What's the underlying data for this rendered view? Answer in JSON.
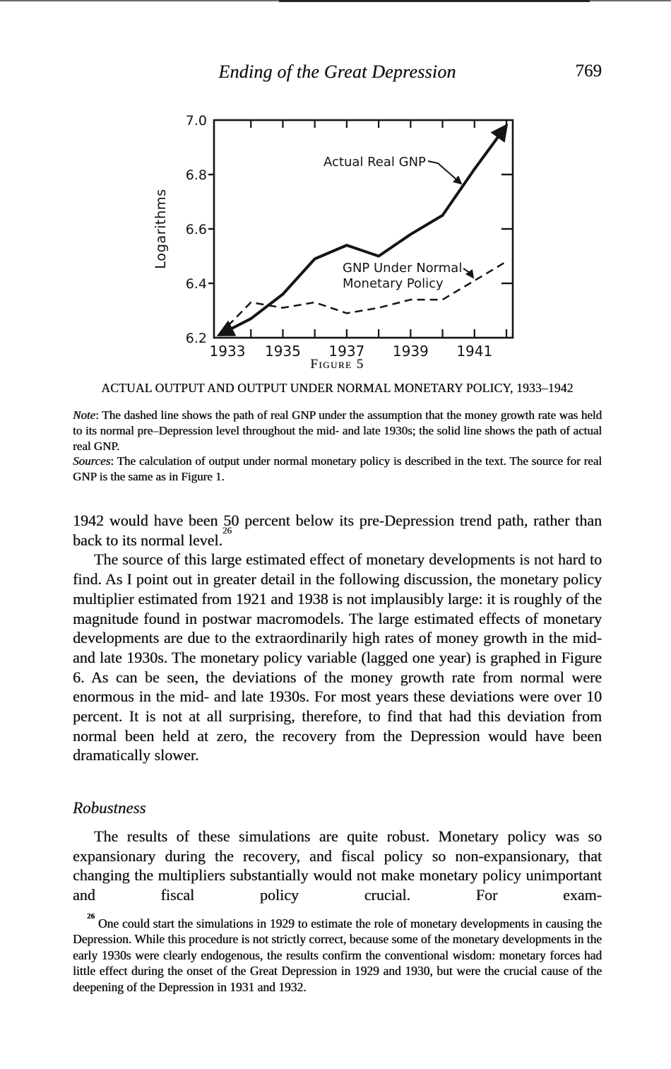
{
  "page_header": {
    "title": "Ending of the Great Depression",
    "page_number": "769"
  },
  "figure": {
    "label": "Figure 5",
    "caption": "ACTUAL OUTPUT AND OUTPUT UNDER NORMAL MONETARY POLICY, 1933–1942",
    "note_label": "Note",
    "note_body": ": The dashed line shows the path of real GNP under the assumption that the money growth rate was held to its normal pre–Depression level throughout the mid- and late 1930s; the solid line shows the path of actual real GNP.",
    "sources_label": "Sources",
    "sources_body": ": The calculation of output under normal monetary policy is described in the text. The source for real GNP is the same as in Figure 1."
  },
  "body": {
    "para1": "1942 would have been 50 percent below its pre-Depression trend path, rather than back to its normal level.",
    "para1_ref": "26",
    "para2": "The source of this large estimated effect of monetary developments is not hard to find. As I point out in greater detail in the following discussion, the monetary policy multiplier estimated from 1921 and 1938 is not implausibly large: it is roughly of the magnitude found in postwar macromodels. The large estimated effects of monetary developments are due to the extraordinarily high rates of money growth in the mid- and late 1930s. The monetary policy variable (lagged one year) is graphed in Figure 6. As can be seen, the deviations of the money growth rate from normal were enormous in the mid- and late 1930s. For most years these deviations were over 10 percent. It is not at all surprising, therefore, to find that had this deviation from normal been held at zero, the recovery from the Depression would have been dramatically slower.",
    "section_heading": "Robustness",
    "para3": "The results of these simulations are quite robust. Monetary policy was so expansionary during the recovery, and fiscal policy so non-expansionary, that changing the multipliers substantially would not make monetary policy unimportant and fiscal policy crucial. For exam-"
  },
  "footnote": {
    "ref": "26",
    "text": " One could start the simulations in 1929 to estimate the role of monetary developments in causing the Depression. While this procedure is not strictly correct, because some of the monetary developments in the early 1930s were clearly endogenous, the results confirm the conventional wisdom: monetary forces had little effect during the onset of the Great Depression in 1929 and 1930, but were the crucial cause of the deepening of the Depression in 1931 and 1932."
  },
  "chart_data": {
    "type": "line",
    "title": "Figure 5",
    "xlabel": "",
    "ylabel": "Logarithms",
    "x": [
      1933,
      1934,
      1935,
      1936,
      1937,
      1938,
      1939,
      1940,
      1941,
      1942
    ],
    "series": [
      {
        "name": "Actual Real GNP",
        "line_style": "solid",
        "values": [
          6.21,
          6.27,
          6.36,
          6.49,
          6.54,
          6.5,
          6.58,
          6.65,
          6.82,
          6.98
        ]
      },
      {
        "name": "GNP Under Normal Monetary Policy",
        "line_style": "dashed",
        "values": [
          6.21,
          6.33,
          6.31,
          6.33,
          6.29,
          6.31,
          6.34,
          6.34,
          6.41,
          6.48
        ]
      }
    ],
    "ylim": [
      6.2,
      7.0
    ],
    "yticks": [
      6.2,
      6.4,
      6.6,
      6.8,
      7.0
    ],
    "xticks": [
      1933,
      1935,
      1937,
      1939,
      1941
    ],
    "grid": false,
    "legend": "inline-annotations-with-arrows",
    "annotations": [
      {
        "lines": [
          "Actual Real GNP"
        ],
        "target_series": "Actual Real GNP"
      },
      {
        "lines": [
          "GNP Under Normal",
          "Monetary Policy"
        ],
        "target_series": "GNP Under Normal Monetary Policy"
      }
    ],
    "line_color": "#141414",
    "background": "#ffffff"
  },
  "colors": {
    "text": "#141414",
    "background": "#ffffff"
  }
}
